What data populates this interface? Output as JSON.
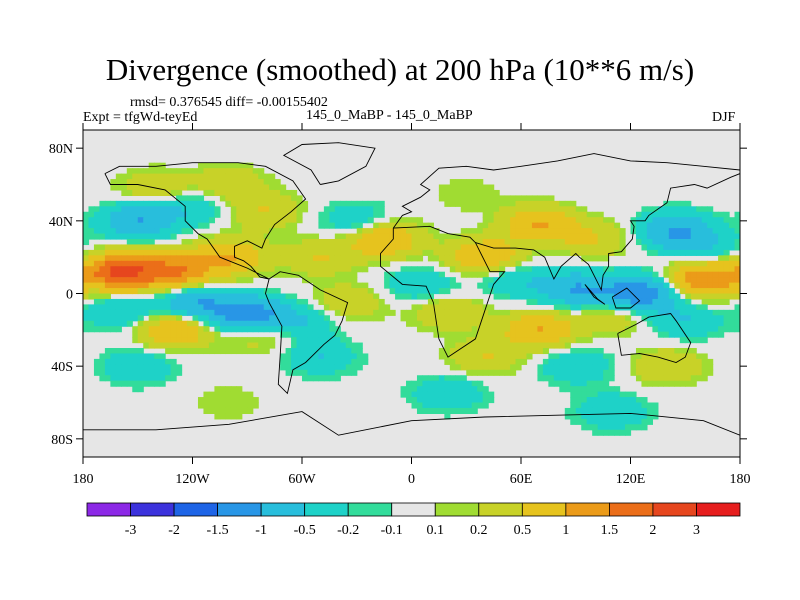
{
  "chart_data": {
    "type": "heatmap",
    "title": "Divergence (smoothed) at 200 hPa (10**6 m/s)",
    "stats_line": "rmsd= 0.376545 diff= -0.00155402",
    "experiment_label": "Expt = tfgWd-teyEd",
    "case_label": "145_0_MaBP - 145_0_MaBP",
    "season": "DJF",
    "x_ticks": [
      {
        "lon": -180,
        "label": "180"
      },
      {
        "lon": -120,
        "label": "120W"
      },
      {
        "lon": -60,
        "label": "60W"
      },
      {
        "lon": 0,
        "label": "0"
      },
      {
        "lon": 60,
        "label": "60E"
      },
      {
        "lon": 120,
        "label": "120E"
      },
      {
        "lon": 180,
        "label": "180"
      }
    ],
    "y_ticks": [
      {
        "lat": 80,
        "label": "80N"
      },
      {
        "lat": 40,
        "label": "40N"
      },
      {
        "lat": 0,
        "label": "0"
      },
      {
        "lat": -40,
        "label": "40S"
      },
      {
        "lat": -80,
        "label": "80S"
      }
    ],
    "xlim": [
      -180,
      180
    ],
    "ylim": [
      -90,
      90
    ],
    "colorbar": {
      "labels": [
        "-3",
        "-2",
        "-1.5",
        "-1",
        "-0.5",
        "-0.2",
        "-0.1",
        "0.1",
        "0.2",
        "0.5",
        "1",
        "1.5",
        "2",
        "3"
      ],
      "colors": [
        "#8c28e6",
        "#3c32dc",
        "#1e64e6",
        "#2896e6",
        "#28bedc",
        "#1ed2c8",
        "#32dc9b",
        "#e6e6e6",
        "#a0dc32",
        "#c8d228",
        "#e6c31e",
        "#eb9b19",
        "#eb6e19",
        "#e6461e",
        "#e61e1e"
      ]
    },
    "field_anomalies": [
      {
        "lon": -160,
        "lat": 12,
        "value": 2.0
      },
      {
        "lon": -130,
        "lat": 12,
        "value": 1.5
      },
      {
        "lon": -100,
        "lat": 20,
        "value": 1.0
      },
      {
        "lon": -150,
        "lat": 40,
        "value": -1.0
      },
      {
        "lon": -120,
        "lat": 48,
        "value": -0.5
      },
      {
        "lon": -80,
        "lat": 45,
        "value": 0.5
      },
      {
        "lon": -140,
        "lat": 58,
        "value": 0.5
      },
      {
        "lon": -100,
        "lat": 60,
        "value": 0.5
      },
      {
        "lon": -160,
        "lat": -10,
        "value": -0.5
      },
      {
        "lon": -120,
        "lat": -5,
        "value": -1.0
      },
      {
        "lon": -90,
        "lat": -12,
        "value": -1.5
      },
      {
        "lon": -60,
        "lat": -15,
        "value": -0.5
      },
      {
        "lon": -130,
        "lat": -20,
        "value": 1.0
      },
      {
        "lon": -85,
        "lat": -22,
        "value": 0.5
      },
      {
        "lon": -150,
        "lat": -40,
        "value": -0.5
      },
      {
        "lon": -50,
        "lat": -35,
        "value": -0.5
      },
      {
        "lon": -30,
        "lat": 40,
        "value": -0.5
      },
      {
        "lon": -15,
        "lat": 30,
        "value": 1.0
      },
      {
        "lon": -50,
        "lat": 20,
        "value": 0.5
      },
      {
        "lon": -35,
        "lat": -5,
        "value": 0.5
      },
      {
        "lon": 5,
        "lat": 5,
        "value": -0.5
      },
      {
        "lon": 20,
        "lat": -10,
        "value": 0.5
      },
      {
        "lon": 30,
        "lat": 55,
        "value": 0.2
      },
      {
        "lon": 40,
        "lat": 20,
        "value": 1.0
      },
      {
        "lon": 70,
        "lat": 38,
        "value": 1.0
      },
      {
        "lon": 100,
        "lat": 30,
        "value": 0.5
      },
      {
        "lon": 55,
        "lat": 8,
        "value": -0.5
      },
      {
        "lon": 90,
        "lat": 2,
        "value": -1.0
      },
      {
        "lon": 125,
        "lat": 0,
        "value": -1.5
      },
      {
        "lon": 145,
        "lat": 35,
        "value": -1.0
      },
      {
        "lon": 160,
        "lat": 8,
        "value": 1.5
      },
      {
        "lon": 160,
        "lat": 25,
        "value": -0.5
      },
      {
        "lon": 110,
        "lat": -12,
        "value": 0.5
      },
      {
        "lon": 70,
        "lat": -20,
        "value": 1.0
      },
      {
        "lon": 150,
        "lat": -15,
        "value": -0.5
      },
      {
        "lon": 40,
        "lat": -35,
        "value": 0.5
      },
      {
        "lon": 90,
        "lat": -40,
        "value": -0.5
      },
      {
        "lon": 140,
        "lat": -40,
        "value": 0.5
      },
      {
        "lon": 20,
        "lat": -55,
        "value": -0.5
      },
      {
        "lon": 110,
        "lat": -65,
        "value": -0.5
      },
      {
        "lon": -100,
        "lat": -60,
        "value": 0.2
      }
    ]
  }
}
